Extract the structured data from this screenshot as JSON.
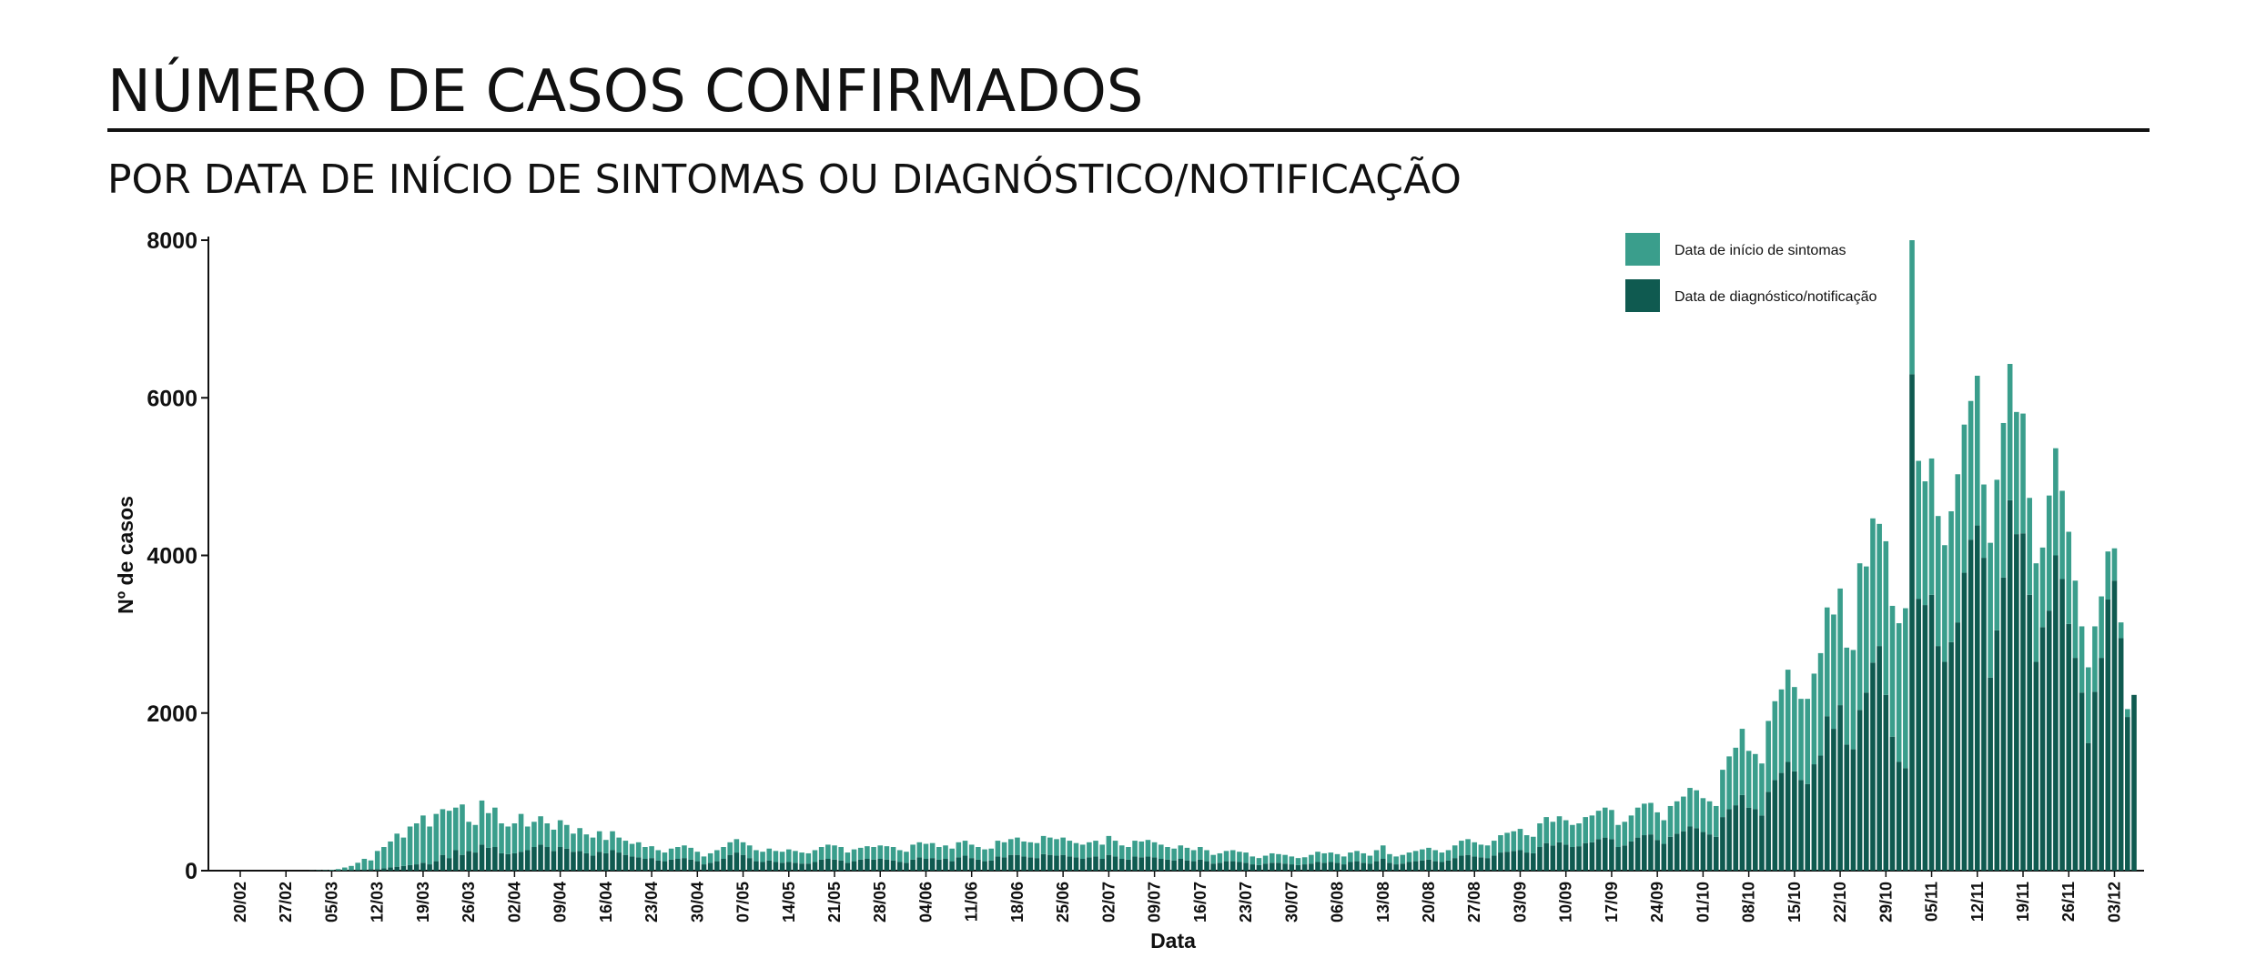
{
  "chart_data": {
    "type": "bar",
    "stacked": true,
    "title": "NÚMERO DE CASOS CONFIRMADOS",
    "subtitle": "POR DATA DE INÍCIO DE SINTOMAS OU DIAGNÓSTICO/NOTIFICAÇÃO",
    "xlabel": "Data",
    "ylabel": "Nº de casos",
    "legend": "top-right",
    "ylim": [
      0,
      8000
    ],
    "yticks": [
      0,
      2000,
      4000,
      6000,
      8000
    ],
    "categories": [
      "20/02",
      null,
      null,
      null,
      null,
      null,
      null,
      "27/02",
      null,
      null,
      null,
      null,
      null,
      null,
      "05/03",
      null,
      null,
      null,
      null,
      null,
      null,
      "12/03",
      null,
      null,
      null,
      null,
      null,
      null,
      "19/03",
      null,
      null,
      null,
      null,
      null,
      null,
      "26/03",
      null,
      null,
      null,
      null,
      null,
      null,
      "02/04",
      null,
      null,
      null,
      null,
      null,
      null,
      "09/04",
      null,
      null,
      null,
      null,
      null,
      null,
      "16/04",
      null,
      null,
      null,
      null,
      null,
      null,
      "23/04",
      null,
      null,
      null,
      null,
      null,
      null,
      "30/04",
      null,
      null,
      null,
      null,
      null,
      null,
      "07/05",
      null,
      null,
      null,
      null,
      null,
      null,
      "14/05",
      null,
      null,
      null,
      null,
      null,
      null,
      "21/05",
      null,
      null,
      null,
      null,
      null,
      null,
      "28/05",
      null,
      null,
      null,
      null,
      null,
      null,
      "04/06",
      null,
      null,
      null,
      null,
      null,
      null,
      "11/06",
      null,
      null,
      null,
      null,
      null,
      null,
      "18/06",
      null,
      null,
      null,
      null,
      null,
      null,
      "25/06",
      null,
      null,
      null,
      null,
      null,
      null,
      "02/07",
      null,
      null,
      null,
      null,
      null,
      null,
      "09/07",
      null,
      null,
      null,
      null,
      null,
      null,
      "16/07",
      null,
      null,
      null,
      null,
      null,
      null,
      "23/07",
      null,
      null,
      null,
      null,
      null,
      null,
      "30/07",
      null,
      null,
      null,
      null,
      null,
      null,
      "06/08",
      null,
      null,
      null,
      null,
      null,
      null,
      "13/08",
      null,
      null,
      null,
      null,
      null,
      null,
      "20/08",
      null,
      null,
      null,
      null,
      null,
      null,
      "27/08",
      null,
      null,
      null,
      null,
      null,
      null,
      "03/09",
      null,
      null,
      null,
      null,
      null,
      null,
      "10/09",
      null,
      null,
      null,
      null,
      null,
      null,
      "17/09",
      null,
      null,
      null,
      null,
      null,
      null,
      "24/09",
      null,
      null,
      null,
      null,
      null,
      null,
      "01/10",
      null,
      null,
      null,
      null,
      null,
      null,
      "08/10",
      null,
      null,
      null,
      null,
      null,
      null,
      "15/10",
      null,
      null,
      null,
      null,
      null,
      null,
      "22/10",
      null,
      null,
      null,
      null,
      null,
      null,
      "29/10",
      null,
      null,
      null,
      null,
      null,
      null,
      "05/11",
      null,
      null,
      null,
      null,
      null,
      null,
      "12/11",
      null,
      null,
      null,
      null,
      null,
      null,
      "19/11",
      null,
      null,
      null,
      null,
      null,
      null,
      "26/11",
      null,
      null,
      null,
      null,
      null,
      null,
      "03/12",
      null,
      null,
      null
    ],
    "series": [
      {
        "name": "Data de diagnóstico/notificação",
        "color": "#0f5a50",
        "values": [
          0,
          0,
          0,
          0,
          0,
          0,
          0,
          0,
          0,
          0,
          0,
          0,
          0,
          0,
          2,
          3,
          5,
          8,
          10,
          10,
          20,
          20,
          30,
          40,
          50,
          60,
          70,
          80,
          100,
          80,
          120,
          200,
          160,
          260,
          200,
          250,
          230,
          330,
          290,
          300,
          220,
          210,
          220,
          240,
          260,
          300,
          330,
          300,
          250,
          300,
          280,
          240,
          250,
          220,
          190,
          240,
          220,
          260,
          230,
          200,
          180,
          170,
          150,
          160,
          130,
          120,
          140,
          150,
          160,
          140,
          120,
          80,
          100,
          120,
          150,
          200,
          230,
          200,
          160,
          120,
          110,
          130,
          110,
          100,
          110,
          100,
          90,
          90,
          110,
          140,
          150,
          140,
          130,
          100,
          120,
          140,
          150,
          140,
          150,
          140,
          130,
          110,
          100,
          140,
          170,
          150,
          160,
          140,
          150,
          120,
          170,
          190,
          160,
          140,
          120,
          130,
          180,
          170,
          200,
          200,
          180,
          170,
          160,
          210,
          200,
          190,
          200,
          180,
          170,
          150,
          170,
          180,
          150,
          200,
          180,
          150,
          140,
          180,
          170,
          180,
          170,
          150,
          140,
          130,
          150,
          130,
          120,
          140,
          120,
          90,
          100,
          120,
          120,
          110,
          100,
          80,
          70,
          90,
          100,
          100,
          90,
          80,
          70,
          80,
          90,
          110,
          100,
          110,
          100,
          80,
          110,
          120,
          100,
          90,
          120,
          150,
          100,
          80,
          90,
          110,
          120,
          130,
          140,
          120,
          110,
          130,
          160,
          190,
          200,
          180,
          170,
          160,
          190,
          230,
          240,
          250,
          260,
          230,
          220,
          300,
          350,
          320,
          360,
          330,
          300,
          310,
          350,
          360,
          400,
          420,
          400,
          300,
          320,
          370,
          420,
          450,
          460,
          390,
          340,
          430,
          470,
          500,
          560,
          540,
          490,
          460,
          430,
          680,
          780,
          830,
          960,
          800,
          780,
          700,
          1000,
          1150,
          1240,
          1380,
          1260,
          1150,
          1100,
          1350,
          1460,
          1960,
          1800,
          2100,
          1600,
          1540,
          2040,
          2260,
          2640,
          2850,
          2230,
          1700,
          1380,
          1300,
          6300,
          3450,
          3370,
          3500,
          2850,
          2650,
          2900,
          3150,
          3780,
          4200,
          4380,
          3970,
          2450,
          3050,
          3720,
          4700,
          4270,
          4280,
          3500,
          2650,
          3090,
          3300,
          4000,
          3700,
          3130,
          2700,
          2260,
          1620,
          2270,
          2700,
          3440,
          3680,
          2950,
          1950,
          2230
        ]
      },
      {
        "name": "Data de início de sintomas",
        "color": "#3a9e8c",
        "values": [
          0,
          0,
          0,
          0,
          0,
          0,
          0,
          0,
          0,
          0,
          0,
          2,
          4,
          5,
          8,
          17,
          35,
          52,
          90,
          140,
          110,
          230,
          270,
          330,
          420,
          360,
          490,
          520,
          600,
          480,
          600,
          580,
          600,
          540,
          640,
          370,
          350,
          560,
          440,
          500,
          380,
          350,
          380,
          480,
          300,
          320,
          360,
          300,
          270,
          340,
          300,
          230,
          290,
          240,
          230,
          260,
          170,
          240,
          190,
          180,
          160,
          190,
          150,
          150,
          130,
          110,
          140,
          150,
          160,
          150,
          120,
          100,
          120,
          140,
          150,
          160,
          170,
          160,
          160,
          140,
          130,
          150,
          140,
          140,
          160,
          150,
          140,
          130,
          150,
          160,
          180,
          180,
          170,
          130,
          150,
          150,
          160,
          160,
          170,
          170,
          170,
          150,
          140,
          190,
          190,
          190,
          190,
          160,
          170,
          160,
          190,
          190,
          170,
          160,
          150,
          150,
          200,
          190,
          200,
          220,
          190,
          190,
          190,
          230,
          220,
          210,
          220,
          200,
          180,
          180,
          190,
          200,
          180,
          240,
          200,
          170,
          160,
          200,
          200,
          210,
          190,
          180,
          160,
          150,
          170,
          160,
          140,
          160,
          140,
          110,
          120,
          130,
          140,
          130,
          130,
          100,
          90,
          100,
          120,
          110,
          110,
          100,
          90,
          90,
          110,
          130,
          120,
          120,
          110,
          100,
          120,
          130,
          120,
          100,
          140,
          170,
          110,
          100,
          110,
          120,
          130,
          140,
          150,
          140,
          120,
          130,
          160,
          190,
          200,
          180,
          160,
          160,
          190,
          220,
          240,
          250,
          270,
          220,
          210,
          300,
          330,
          300,
          330,
          310,
          280,
          290,
          330,
          340,
          360,
          380,
          370,
          280,
          300,
          330,
          380,
          400,
          400,
          350,
          300,
          390,
          410,
          440,
          490,
          480,
          430,
          420,
          390,
          600,
          670,
          730,
          840,
          720,
          700,
          660,
          900,
          1000,
          1060,
          1170,
          1070,
          1030,
          1080,
          1150,
          1300,
          1380,
          1450,
          1480,
          1230,
          1260,
          1860,
          1600,
          1830,
          1550,
          1950,
          1660,
          1760,
          2030,
          1700,
          1750,
          1570,
          1730,
          1650,
          1480,
          1660,
          1880,
          1880,
          1760,
          1900,
          930,
          1710,
          1910,
          1960,
          1730,
          1550,
          1520,
          1230,
          1250,
          1010,
          1460,
          1360,
          1120,
          1170,
          980,
          840,
          960,
          830,
          780,
          610,
          410,
          200,
          100,
          0
        ]
      }
    ]
  }
}
